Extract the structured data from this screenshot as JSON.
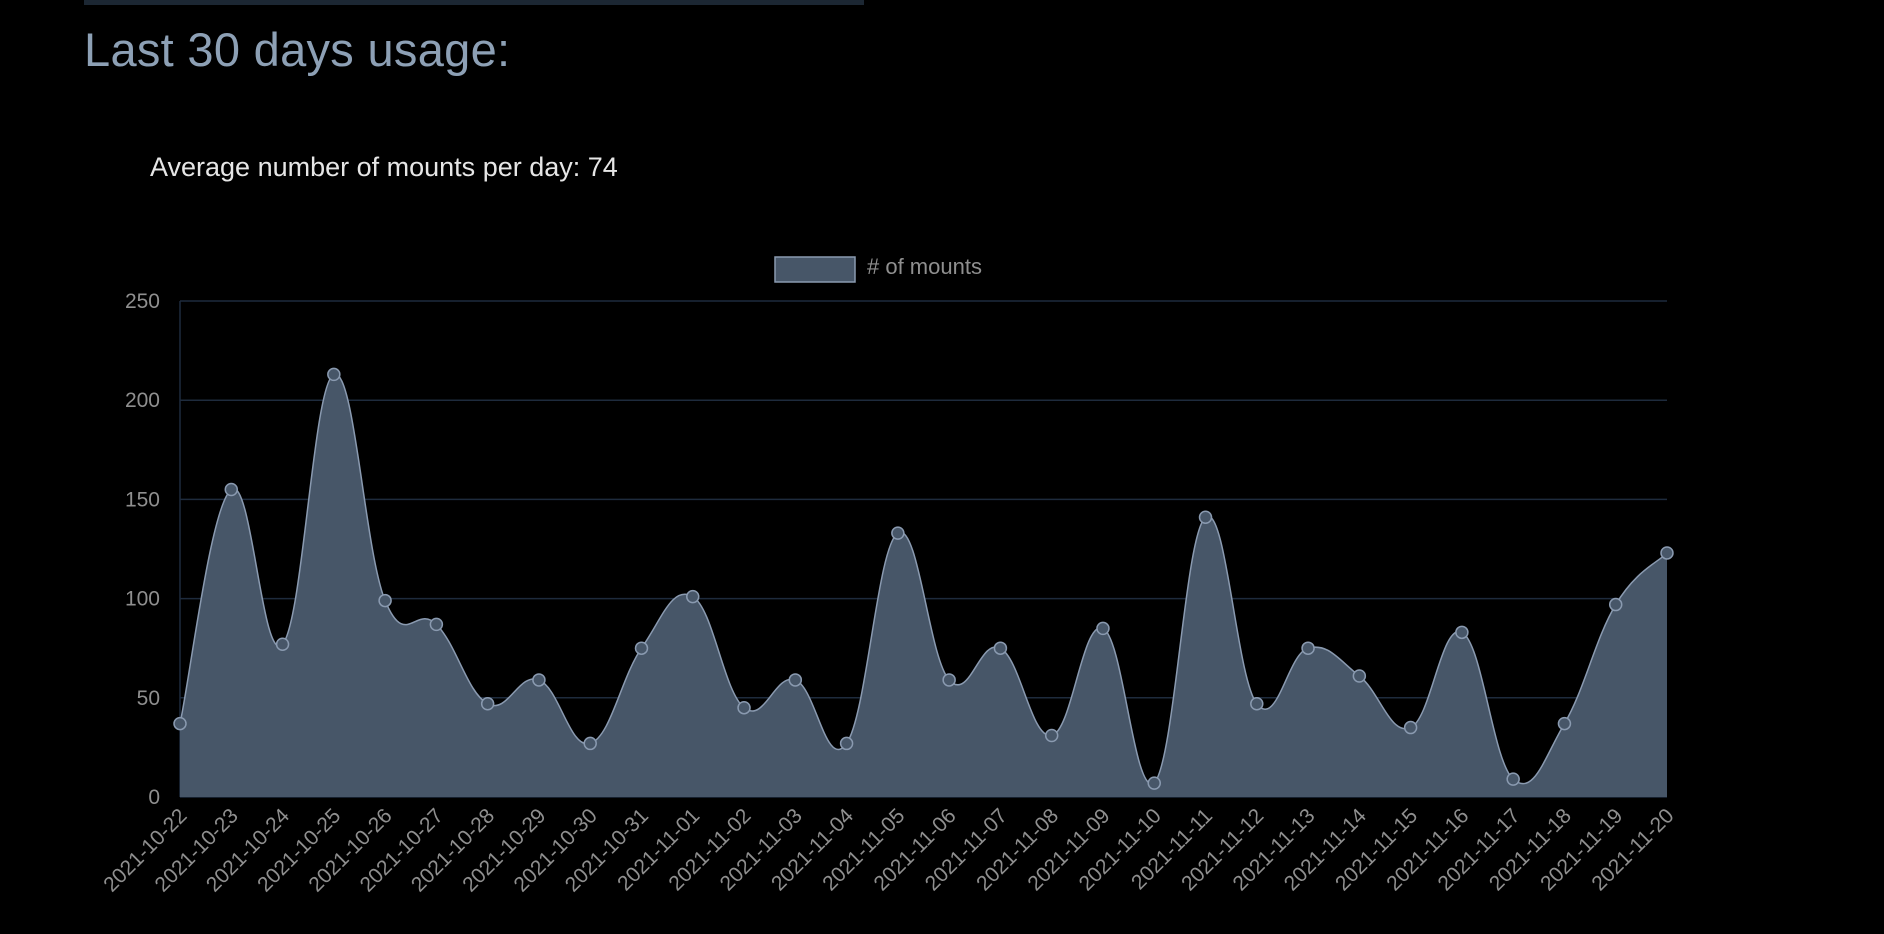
{
  "page": {
    "title": "Last 30 days usage:",
    "avg_label": "Average number of mounts per day: 74"
  },
  "colors": {
    "background": "#000000",
    "title": "#8da0b5",
    "area_fill": "#475668",
    "area_stroke": "#8a9ab0",
    "grid": "#1e2b3d",
    "tick_text": "#8f8f8f"
  },
  "chart_data": {
    "type": "area",
    "title": "",
    "xlabel": "",
    "ylabel": "",
    "ylim": [
      0,
      250
    ],
    "yticks": [
      0,
      50,
      100,
      150,
      200,
      250
    ],
    "grid": true,
    "legend_position": "top-center",
    "categories": [
      "2021-10-22",
      "2021-10-23",
      "2021-10-24",
      "2021-10-25",
      "2021-10-26",
      "2021-10-27",
      "2021-10-28",
      "2021-10-29",
      "2021-10-30",
      "2021-10-31",
      "2021-11-01",
      "2021-11-02",
      "2021-11-03",
      "2021-11-04",
      "2021-11-05",
      "2021-11-06",
      "2021-11-07",
      "2021-11-08",
      "2021-11-09",
      "2021-11-10",
      "2021-11-11",
      "2021-11-12",
      "2021-11-13",
      "2021-11-14",
      "2021-11-15",
      "2021-11-16",
      "2021-11-17",
      "2021-11-18",
      "2021-11-19",
      "2021-11-20"
    ],
    "series": [
      {
        "name": "# of mounts",
        "values": [
          37,
          155,
          77,
          213,
          99,
          87,
          47,
          59,
          27,
          75,
          101,
          45,
          59,
          27,
          133,
          59,
          75,
          31,
          85,
          7,
          141,
          47,
          75,
          61,
          35,
          83,
          9,
          37,
          97,
          123
        ]
      }
    ]
  }
}
